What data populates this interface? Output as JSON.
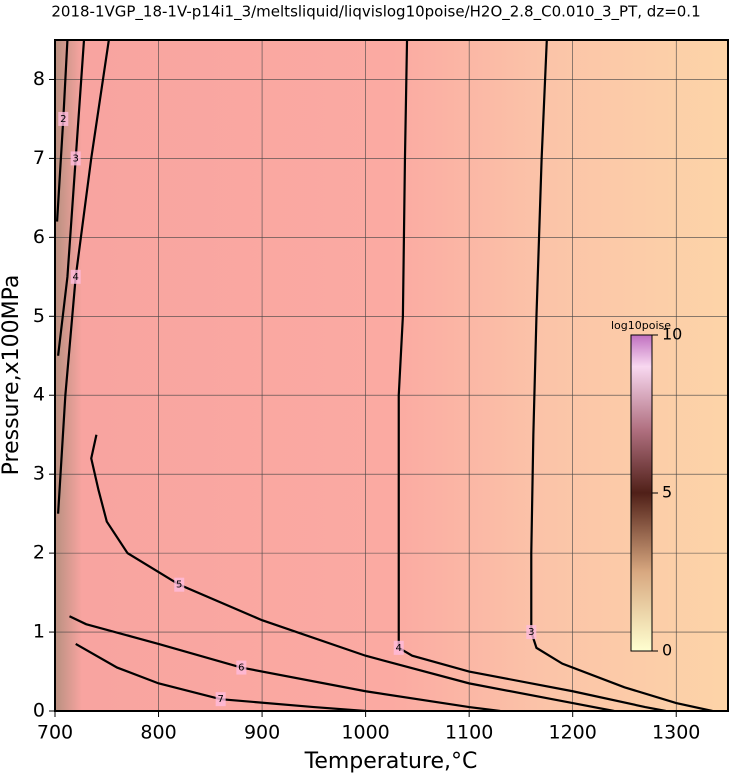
{
  "chart_data": {
    "type": "contour",
    "title": "2018-1VGP_18-1V-p14i1_3/meltsliquid/liqvislog10poise/H2O_2.8_C0.010_3_PT, dz=0.1",
    "x_label": "Temperature,°C",
    "y_label": "Pressure,x100MPa",
    "xlim": [
      700,
      1350
    ],
    "ylim": [
      0,
      8.5
    ],
    "xticks": [
      700,
      800,
      900,
      1000,
      1100,
      1200,
      1300
    ],
    "yticks": [
      0,
      1,
      2,
      3,
      4,
      5,
      6,
      7,
      8
    ],
    "grid": true,
    "line_color": "#000000",
    "contours": [
      {
        "level": 3,
        "x": [
          1175,
          1170,
          1165,
          1162,
          1160,
          1160,
          1165,
          1190,
          1250,
          1300,
          1335
        ],
        "y": [
          8.5,
          7,
          5,
          3.5,
          2,
          1.0,
          0.8,
          0.6,
          0.3,
          0.1,
          0
        ]
      },
      {
        "level": 4,
        "x": [
          1040,
          1038,
          1036,
          1032,
          1032,
          1032,
          1045,
          1100,
          1200,
          1270,
          1290
        ],
        "y": [
          8.5,
          7,
          5,
          4,
          3,
          0.8,
          0.7,
          0.5,
          0.25,
          0.05,
          0
        ]
      },
      {
        "level": 5,
        "x": [
          740,
          735,
          742,
          750,
          770,
          820,
          900,
          1000,
          1100,
          1200,
          1240
        ],
        "y": [
          3.5,
          3.2,
          2.8,
          2.4,
          2.0,
          1.6,
          1.15,
          0.7,
          0.35,
          0.1,
          0
        ]
      },
      {
        "level": 6,
        "x": [
          714,
          730,
          800,
          880,
          1000,
          1100,
          1130
        ],
        "y": [
          1.2,
          1.1,
          0.85,
          0.55,
          0.25,
          0.05,
          0
        ]
      },
      {
        "level": 7,
        "x": [
          720,
          760,
          800,
          860,
          950,
          1000
        ],
        "y": [
          0.85,
          0.55,
          0.35,
          0.15,
          0.05,
          0
        ]
      },
      {
        "level": 4,
        "x": [
          703,
          710,
          720,
          735,
          752
        ],
        "y": [
          2.5,
          4,
          5.5,
          7,
          8.5
        ]
      },
      {
        "level": 3,
        "x": [
          703,
          712,
          720,
          728
        ],
        "y": [
          4.5,
          5.5,
          7,
          8.5
        ]
      },
      {
        "level": 2,
        "x": [
          702,
          708,
          712
        ],
        "y": [
          6.2,
          7.5,
          8.5
        ]
      }
    ],
    "colorbar": {
      "label": "log10poise",
      "lim": [
        0,
        10
      ],
      "ticks": [
        0,
        5,
        10
      ]
    }
  }
}
